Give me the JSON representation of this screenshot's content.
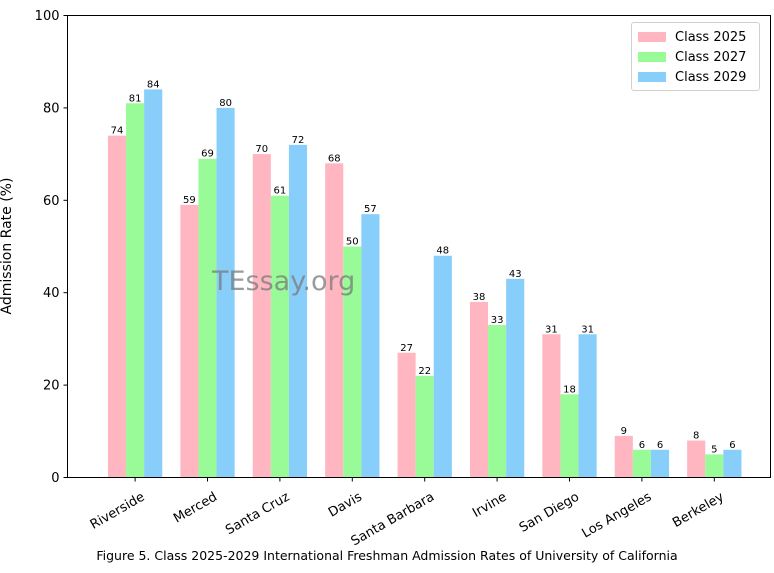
{
  "chart_data": {
    "type": "bar",
    "categories": [
      "Riverside",
      "Merced",
      "Santa Cruz",
      "Davis",
      "Santa Barbara",
      "Irvine",
      "San Diego",
      "Los Angeles",
      "Berkeley"
    ],
    "series": [
      {
        "name": "Class 2025",
        "color": "#ffb6c1",
        "values": [
          74,
          59,
          70,
          68,
          27,
          38,
          31,
          9,
          8
        ],
        "labels": [
          "74",
          "59",
          "70",
          "68",
          "27",
          "38",
          "31",
          "9",
          "8"
        ]
      },
      {
        "name": "Class 2027",
        "color": "#98fb98",
        "values": [
          81,
          69,
          61,
          50,
          22,
          33,
          18,
          6,
          5
        ],
        "labels": [
          "81",
          "69",
          "61",
          "50",
          "22",
          "33",
          "18",
          "6",
          "5"
        ]
      },
      {
        "name": "Class 2029",
        "color": "#87cefa",
        "values": [
          84,
          80,
          72,
          57,
          48,
          43,
          31,
          6,
          6
        ],
        "labels": [
          "84",
          "80",
          "72",
          "57",
          "48",
          "43",
          "31",
          "6",
          "6"
        ]
      }
    ],
    "ylabel": "Admission Rate (%)",
    "ylim": [
      0,
      100
    ],
    "yticks": [
      "0",
      "20",
      "40",
      "60",
      "80",
      "100"
    ],
    "legend_position": "top-right",
    "grid": false
  },
  "caption": "Figure 5. Class 2025-2029 International Freshman Admission Rates of University of California",
  "watermark": "TEssay.org"
}
